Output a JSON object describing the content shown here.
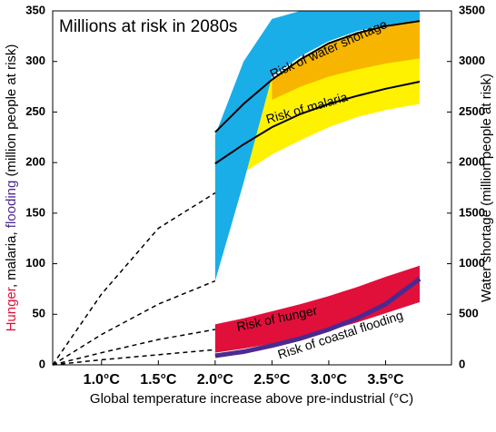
{
  "chart_data": {
    "type": "band",
    "title": "Millions at risk in 2080s",
    "xlabel": "Global temperature increase above pre-industrial (°C)",
    "ylabel": [
      {
        "text": "Hunger",
        "color": "#e0103a"
      },
      {
        "text": ", malaria, ",
        "color": "#000000"
      },
      {
        "text": "flooding",
        "color": "#4b2a90"
      },
      {
        "text": " (million people at risk)",
        "color": "#000000"
      }
    ],
    "y2label": "Water shortage (million people at risk)",
    "y2label_color": "#29b5e8",
    "xlim": [
      0.57,
      4.08
    ],
    "xticks": [
      {
        "value": 1.0,
        "label": "1.0°C"
      },
      {
        "value": 1.5,
        "label": "1.5°C"
      },
      {
        "value": 2.0,
        "label": "2.0°C"
      },
      {
        "value": 2.5,
        "label": "2.5°C"
      },
      {
        "value": 3.0,
        "label": "3.0°C"
      },
      {
        "value": 3.5,
        "label": "3.5°C"
      }
    ],
    "ylim": [
      0,
      350
    ],
    "yticks": [
      0,
      50,
      100,
      150,
      200,
      250,
      300,
      350
    ],
    "y2lim": [
      0,
      3500
    ],
    "y2ticks": [
      0,
      500,
      1000,
      1500,
      2000,
      2500,
      3000,
      3500
    ],
    "series": [
      {
        "name": "Risk of malaria",
        "kind": "band",
        "color": "#fff200",
        "x": [
          2.0,
          2.25,
          2.5,
          2.75,
          3.0,
          3.25,
          3.5,
          3.8
        ],
        "high": [
          230,
          258,
          282,
          302,
          318,
          328,
          335,
          340
        ],
        "low": [
          170,
          190,
          208,
          222,
          235,
          245,
          252,
          258
        ]
      },
      {
        "kind": "band",
        "color": "#f7b500",
        "x": [
          2.5,
          2.75,
          3.0,
          3.25,
          3.5,
          3.8
        ],
        "high": [
          282,
          302,
          318,
          328,
          335,
          340
        ],
        "low": [
          262,
          275,
          285,
          292,
          298,
          303
        ]
      },
      {
        "name": "Risk of water shortage",
        "kind": "band",
        "color": "#19aee8",
        "axis": "y2",
        "x": [
          2.0,
          2.25,
          2.5,
          2.75,
          3.0,
          3.25,
          3.5,
          3.8
        ],
        "high": [
          2270,
          3000,
          3420,
          3500,
          3500,
          3500,
          3500,
          3500
        ],
        "low": [
          830,
          1800,
          2850,
          3050,
          3200,
          3300,
          3360,
          3410
        ]
      },
      {
        "kind": "line",
        "color": "#000000",
        "width": 2,
        "x": [
          2.0,
          2.25,
          2.5,
          2.75,
          3.0,
          3.25,
          3.5,
          3.8
        ],
        "values": [
          230,
          258,
          282,
          302,
          318,
          328,
          335,
          340
        ]
      },
      {
        "kind": "line",
        "color": "#000000",
        "width": 2,
        "x": [
          2.0,
          2.25,
          2.5,
          2.75,
          3.0,
          3.25,
          3.5,
          3.8
        ],
        "values": [
          199,
          218,
          235,
          248,
          258,
          266,
          273,
          280
        ]
      },
      {
        "name": "Risk of hunger",
        "kind": "band",
        "color": "#e0103a",
        "x": [
          2.0,
          2.25,
          2.5,
          2.75,
          3.0,
          3.25,
          3.5,
          3.8
        ],
        "high": [
          40,
          46,
          53,
          60,
          68,
          77,
          87,
          98
        ],
        "low": [
          12,
          16,
          21,
          27,
          34,
          42,
          51,
          62
        ]
      },
      {
        "name": "Risk of coastal flooding",
        "kind": "line",
        "color": "#4b2a90",
        "width": 5,
        "x": [
          2.0,
          2.25,
          2.5,
          2.75,
          3.0,
          3.25,
          3.5,
          3.8
        ],
        "values": [
          9,
          13,
          19,
          26,
          35,
          46,
          60,
          85
        ]
      },
      {
        "kind": "line",
        "dashed": true,
        "color": "#000000",
        "width": 1.5,
        "x": [
          0.57,
          1.0,
          1.5,
          2.0
        ],
        "values": [
          0,
          70,
          135,
          170
        ]
      },
      {
        "kind": "line",
        "dashed": true,
        "color": "#000000",
        "width": 1.5,
        "x": [
          0.57,
          1.0,
          1.5,
          2.0
        ],
        "values": [
          0,
          30,
          60,
          83
        ]
      },
      {
        "kind": "line",
        "dashed": true,
        "color": "#000000",
        "width": 1.5,
        "x": [
          0.57,
          1.0,
          1.5,
          2.0
        ],
        "values": [
          0,
          12,
          25,
          35
        ]
      },
      {
        "kind": "line",
        "dashed": true,
        "color": "#000000",
        "width": 1.5,
        "x": [
          0.57,
          1.0,
          1.5,
          2.0
        ],
        "values": [
          0,
          5,
          10,
          15
        ]
      }
    ]
  }
}
